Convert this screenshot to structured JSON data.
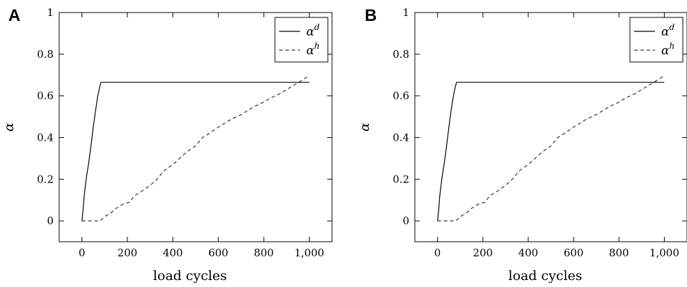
{
  "chart_data": [
    {
      "type": "line",
      "panel_label": "A",
      "xlabel": "load cycles",
      "ylabel": "α",
      "xlim": [
        -100,
        1100
      ],
      "ylim": [
        -0.1,
        1.0
      ],
      "xticks": [
        0,
        200,
        400,
        600,
        800,
        1000
      ],
      "xtick_labels": [
        "0",
        "200",
        "400",
        "600",
        "800",
        "1,000"
      ],
      "yticks": [
        0,
        0.2,
        0.4,
        0.6,
        0.8,
        1.0
      ],
      "ytick_labels": [
        "0",
        "0.2",
        "0.4",
        "0.6",
        "0.8",
        "1"
      ],
      "legend_position": "top-right",
      "grid": false,
      "series": [
        {
          "name": "α",
          "name_sup": "d",
          "style": "solid",
          "color": "#000000",
          "x": [
            0,
            5,
            10,
            20,
            30,
            40,
            50,
            60,
            70,
            80,
            84,
            200,
            400,
            600,
            800,
            1000
          ],
          "y": [
            0,
            0.05,
            0.12,
            0.21,
            0.28,
            0.36,
            0.45,
            0.53,
            0.6,
            0.65,
            0.665,
            0.665,
            0.665,
            0.665,
            0.665,
            0.665
          ]
        },
        {
          "name": "α",
          "name_sup": "h",
          "style": "dashed",
          "color": "#333333",
          "x": [
            0,
            50,
            80,
            100,
            130,
            150,
            180,
            210,
            230,
            260,
            300,
            330,
            360,
            400,
            430,
            460,
            500,
            530,
            560,
            600,
            630,
            660,
            700,
            730,
            760,
            800,
            830,
            870,
            900,
            930,
            960,
            990,
            1000
          ],
          "y": [
            0,
            0,
            0,
            0.02,
            0.04,
            0.06,
            0.08,
            0.09,
            0.12,
            0.14,
            0.17,
            0.2,
            0.24,
            0.27,
            0.3,
            0.33,
            0.36,
            0.4,
            0.42,
            0.45,
            0.47,
            0.49,
            0.51,
            0.53,
            0.55,
            0.57,
            0.59,
            0.61,
            0.63,
            0.65,
            0.67,
            0.69,
            0.7
          ]
        }
      ]
    },
    {
      "type": "line",
      "panel_label": "B",
      "xlabel": "load cycles",
      "ylabel": "α",
      "xlim": [
        -100,
        1100
      ],
      "ylim": [
        -0.1,
        1.0
      ],
      "xticks": [
        0,
        200,
        400,
        600,
        800,
        1000
      ],
      "xtick_labels": [
        "0",
        "200",
        "400",
        "600",
        "800",
        "1,000"
      ],
      "yticks": [
        0,
        0.2,
        0.4,
        0.6,
        0.8,
        1.0
      ],
      "ytick_labels": [
        "0",
        "0.2",
        "0.4",
        "0.6",
        "0.8",
        "1"
      ],
      "legend_position": "top-right",
      "grid": false,
      "series": [
        {
          "name": "α",
          "name_sup": "d",
          "style": "solid",
          "color": "#000000",
          "x": [
            0,
            5,
            10,
            20,
            30,
            40,
            50,
            60,
            70,
            80,
            84,
            200,
            400,
            600,
            800,
            1000
          ],
          "y": [
            0,
            0.05,
            0.12,
            0.21,
            0.28,
            0.36,
            0.45,
            0.53,
            0.6,
            0.65,
            0.665,
            0.665,
            0.665,
            0.665,
            0.665,
            0.665
          ]
        },
        {
          "name": "α",
          "name_sup": "h",
          "style": "dashed",
          "color": "#333333",
          "x": [
            0,
            50,
            80,
            100,
            130,
            150,
            180,
            210,
            230,
            260,
            300,
            330,
            360,
            400,
            430,
            460,
            500,
            530,
            560,
            600,
            630,
            660,
            700,
            730,
            760,
            800,
            830,
            870,
            900,
            930,
            960,
            990,
            1000
          ],
          "y": [
            0,
            0,
            0,
            0.02,
            0.04,
            0.06,
            0.08,
            0.09,
            0.12,
            0.14,
            0.17,
            0.2,
            0.24,
            0.27,
            0.3,
            0.33,
            0.36,
            0.4,
            0.42,
            0.45,
            0.47,
            0.49,
            0.51,
            0.53,
            0.55,
            0.57,
            0.59,
            0.61,
            0.63,
            0.65,
            0.67,
            0.69,
            0.7
          ]
        }
      ]
    }
  ]
}
